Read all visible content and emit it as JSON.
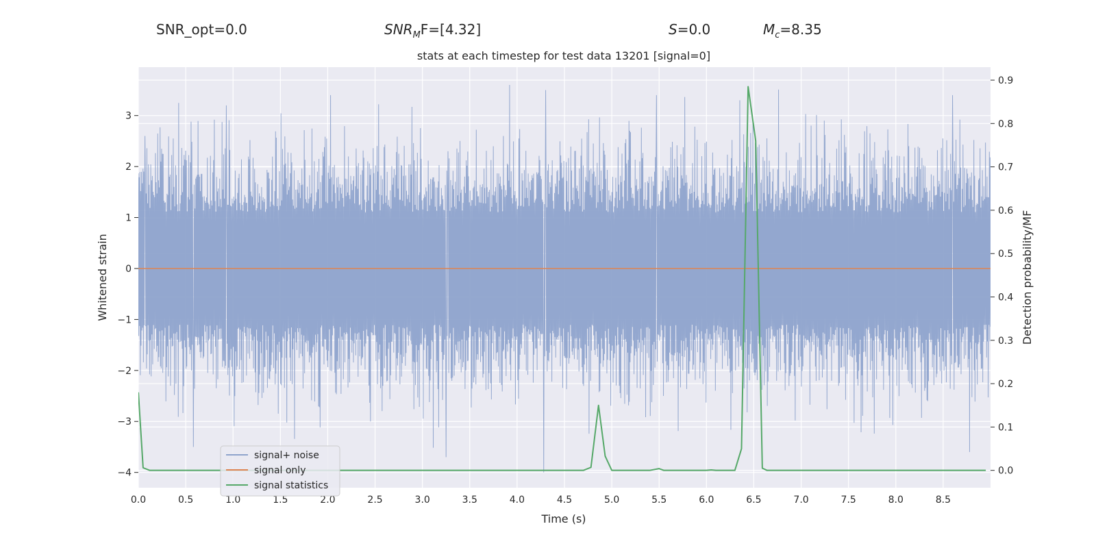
{
  "header": {
    "snr_opt": "SNR_opt=0.0",
    "snr_mf_main": "SNR",
    "snr_mf_sub": "M",
    "snr_mf_tail": "F=[4.32]",
    "s_label": "S",
    "s_value": "=0.0",
    "mc_main": "M",
    "mc_sub": "c",
    "mc_value": "=8.35"
  },
  "chart_data": {
    "type": "line",
    "title": "stats at each timestep for test data 13201 [signal=0]",
    "xlabel": "Time (s)",
    "ylabel_left": "Whitened strain",
    "ylabel_right": "Detection probability/MF",
    "xlim": [
      0.0,
      9.0
    ],
    "ylim_left": [
      -4.3,
      3.95
    ],
    "ylim_right": [
      -0.04,
      0.93
    ],
    "x_ticks": [
      0.0,
      0.5,
      1.0,
      1.5,
      2.0,
      2.5,
      3.0,
      3.5,
      4.0,
      4.5,
      5.0,
      5.5,
      6.0,
      6.5,
      7.0,
      7.5,
      8.0,
      8.5
    ],
    "x_tick_labels": [
      "0.0",
      "0.5",
      "1.0",
      "1.5",
      "2.0",
      "2.5",
      "3.0",
      "3.5",
      "4.0",
      "4.5",
      "5.0",
      "5.5",
      "6.0",
      "6.5",
      "7.0",
      "7.5",
      "8.0",
      "8.5"
    ],
    "y_ticks_left": [
      -4,
      -3,
      -2,
      -1,
      0,
      1,
      2,
      3
    ],
    "y_tick_labels_left": [
      "−4",
      "−3",
      "−2",
      "−1",
      "0",
      "1",
      "2",
      "3"
    ],
    "y_ticks_right": [
      0.0,
      0.1,
      0.2,
      0.3,
      0.4,
      0.5,
      0.6,
      0.7,
      0.8,
      0.9
    ],
    "y_tick_labels_right": [
      "0.0",
      "0.1",
      "0.2",
      "0.3",
      "0.4",
      "0.5",
      "0.6",
      "0.7",
      "0.8",
      "0.9"
    ],
    "grid": true,
    "legend_position": "lower-left",
    "series": [
      {
        "name": "signal+ noise",
        "axis": "left",
        "color": "#8ea3cc",
        "kind": "noise",
        "envelope_max": 3.6,
        "envelope_min": -4.0,
        "sample_count": 2200,
        "peaks": [
          {
            "x": 0.07,
            "y": 2.6
          },
          {
            "x": 0.93,
            "y": 3.2
          },
          {
            "x": 2.03,
            "y": 3.4
          },
          {
            "x": 3.27,
            "y": 2.3
          },
          {
            "x": 4.3,
            "y": 3.5
          },
          {
            "x": 5.47,
            "y": 3.4
          },
          {
            "x": 6.35,
            "y": 3.3
          },
          {
            "x": 8.6,
            "y": 3.4
          },
          {
            "x": 0.58,
            "y": -3.5
          },
          {
            "x": 3.25,
            "y": -3.7
          },
          {
            "x": 4.28,
            "y": -4.0
          },
          {
            "x": 8.78,
            "y": -3.6
          },
          {
            "x": 2.45,
            "y": -3.0
          }
        ]
      },
      {
        "name": "signal only",
        "axis": "left",
        "color": "#dd8452",
        "x": [
          0.0,
          9.0
        ],
        "y": [
          0.0,
          0.0
        ]
      },
      {
        "name": "signal statistics",
        "axis": "right",
        "color": "#55a868",
        "x": [
          0.0,
          0.05,
          0.12,
          0.5,
          1.0,
          2.0,
          3.0,
          4.0,
          4.7,
          4.78,
          4.86,
          4.93,
          5.0,
          5.1,
          5.3,
          5.4,
          5.5,
          5.55,
          6.0,
          6.05,
          6.1,
          6.3,
          6.37,
          6.44,
          6.52,
          6.59,
          6.64,
          7.0,
          8.0,
          8.95
        ],
        "y": [
          0.18,
          0.006,
          0.0,
          0.0,
          0.0,
          0.0,
          0.0,
          0.0,
          0.0,
          0.007,
          0.15,
          0.033,
          0.0,
          0.0,
          0.0,
          0.0,
          0.004,
          0.0,
          0.0,
          0.001,
          0.0,
          0.0,
          0.05,
          0.885,
          0.76,
          0.005,
          0.0,
          0.0,
          0.0,
          0.0
        ]
      }
    ]
  }
}
